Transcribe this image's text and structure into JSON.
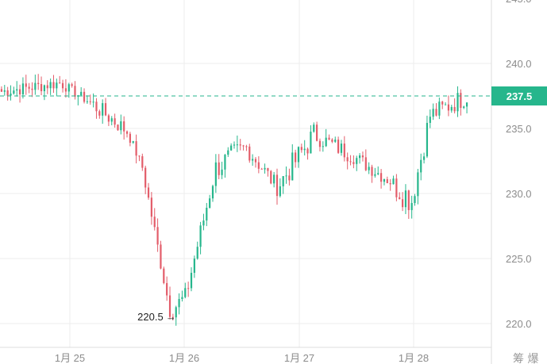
{
  "chart_data": {
    "type": "candlestick",
    "colors": {
      "up": "#26b68c",
      "down": "#e35d6a",
      "grid": "#ececec",
      "axis": "#dcdcdc",
      "current": "#26b68c"
    },
    "y_axis": {
      "min": 220,
      "max": 240,
      "ticks": [
        "220.0",
        "225.0",
        "230.0",
        "235.0",
        "240.0"
      ],
      "tick_values": [
        220,
        225,
        230,
        235,
        240
      ],
      "side": "right"
    },
    "x_axis": {
      "labels": [
        "1月 25",
        "1月 26",
        "1月 27",
        "1月 28"
      ]
    },
    "current_price": {
      "value": 237.5,
      "label": "237.5"
    },
    "low_annotation": {
      "label": "220.5",
      "value": 220.5
    },
    "corner_label": "筹 爆",
    "segments": [
      {
        "n": 20,
        "from": 237.8,
        "to": 238.5,
        "noise": 0.5
      },
      {
        "n": 10,
        "from": 238.5,
        "to": 237.0,
        "noise": 0.4
      },
      {
        "n": 12,
        "from": 237.0,
        "to": 234.8,
        "noise": 0.7
      },
      {
        "n": 5,
        "from": 234.8,
        "to": 232.0,
        "noise": 0.4
      },
      {
        "n": 9,
        "from": 232.0,
        "to": 221.0,
        "noise": 0.6
      },
      {
        "n": 5,
        "from": 221.0,
        "to": 222.0,
        "noise": 0.8
      },
      {
        "n": 10,
        "from": 222.0,
        "to": 232.0,
        "noise": 0.8
      },
      {
        "n": 10,
        "from": 232.0,
        "to": 233.5,
        "noise": 1.0
      },
      {
        "n": 10,
        "from": 233.5,
        "to": 230.5,
        "noise": 0.7
      },
      {
        "n": 12,
        "from": 230.5,
        "to": 234.5,
        "noise": 1.0
      },
      {
        "n": 12,
        "from": 234.5,
        "to": 233.0,
        "noise": 0.7
      },
      {
        "n": 14,
        "from": 233.0,
        "to": 230.8,
        "noise": 0.6
      },
      {
        "n": 6,
        "from": 230.8,
        "to": 229.5,
        "noise": 1.2
      },
      {
        "n": 6,
        "from": 229.5,
        "to": 236.0,
        "noise": 1.0
      },
      {
        "n": 12,
        "from": 236.0,
        "to": 237.5,
        "noise": 0.8
      }
    ]
  }
}
